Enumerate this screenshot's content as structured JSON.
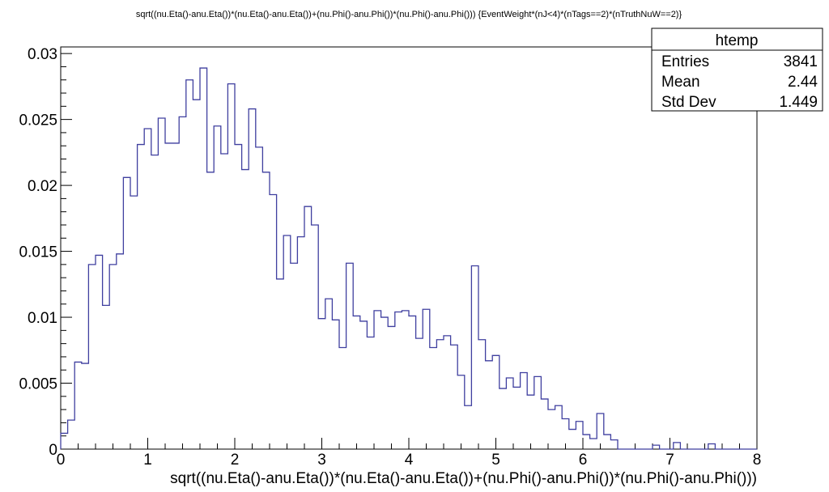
{
  "chart_data": {
    "type": "histogram",
    "title": "sqrt((nu.Eta()-anu.Eta())*(nu.Eta()-anu.Eta())+(nu.Phi()-anu.Phi())*(nu.Phi()-anu.Phi())) {EventWeight*(nJ<4)*(nTags==2)*(nTruthNuW==2)}",
    "xlabel": "sqrt((nu.Eta()-anu.Eta())*(nu.Eta()-anu.Eta())+(nu.Phi()-anu.Phi())*(nu.Phi()-anu.Phi()))",
    "ylabel": "",
    "xlim": [
      0,
      8
    ],
    "ylim": [
      0,
      0.0305
    ],
    "xticks": [
      "0",
      "1",
      "2",
      "3",
      "4",
      "5",
      "6",
      "7",
      "8"
    ],
    "yticks": [
      "0",
      "0.005",
      "0.01",
      "0.015",
      "0.02",
      "0.025",
      "0.03"
    ],
    "bin_width": 0.08,
    "line_color": "#3f3f9f",
    "values": [
      0.0012,
      0.0022,
      0.0066,
      0.0065,
      0.014,
      0.0147,
      0.0109,
      0.014,
      0.0148,
      0.0206,
      0.0192,
      0.0231,
      0.0243,
      0.0223,
      0.0251,
      0.0232,
      0.0232,
      0.0252,
      0.028,
      0.0265,
      0.0289,
      0.021,
      0.0245,
      0.0224,
      0.0277,
      0.0231,
      0.0212,
      0.0258,
      0.0229,
      0.021,
      0.0193,
      0.0129,
      0.0162,
      0.0141,
      0.0161,
      0.0184,
      0.017,
      0.0099,
      0.0114,
      0.0098,
      0.0077,
      0.0141,
      0.0101,
      0.0097,
      0.0085,
      0.0105,
      0.01,
      0.0093,
      0.0104,
      0.0105,
      0.0101,
      0.0084,
      0.0106,
      0.0077,
      0.0083,
      0.0086,
      0.0079,
      0.0056,
      0.0033,
      0.0139,
      0.0083,
      0.0067,
      0.0071,
      0.0046,
      0.0054,
      0.0047,
      0.0058,
      0.0041,
      0.0055,
      0.0038,
      0.003,
      0.0033,
      0.0023,
      0.0015,
      0.0021,
      0.0011,
      0.0008,
      0.0027,
      0.0011,
      0.0007,
      0,
      0,
      0,
      0,
      0,
      0.0003,
      0,
      0,
      0.0005,
      0,
      0,
      0,
      0,
      0.0004,
      0,
      0,
      0,
      0,
      0,
      0
    ],
    "stats": {
      "name": "htemp",
      "rows": [
        {
          "label": "Entries",
          "value": "3841"
        },
        {
          "label": "Mean",
          "value": "2.44"
        },
        {
          "label": "Std Dev",
          "value": "1.449"
        }
      ]
    }
  }
}
